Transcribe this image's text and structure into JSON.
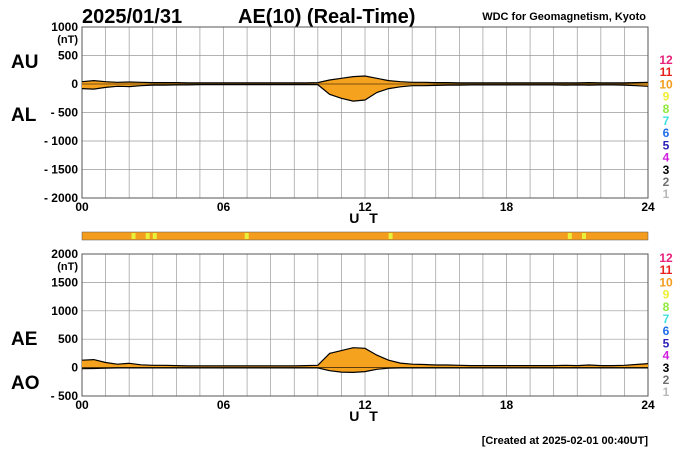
{
  "header": {
    "date": "2025/01/31",
    "title": "AE(10) (Real-Time)",
    "organization": "WDC for Geomagnetism, Kyoto"
  },
  "footer": {
    "created": "[Created at 2025-02-01 00:40UT]"
  },
  "colors": {
    "fill": "#f5a21f",
    "grid": "#9a9a9a",
    "bar": "#f39c1e",
    "bar_mark": "#e8f03a",
    "legend": {
      "12": "#e8207a",
      "11": "#e8201c",
      "10": "#f39c1e",
      "9": "#f0ee32",
      "8": "#8ee83a",
      "7": "#3ee0e0",
      "6": "#1e6ee8",
      "5": "#2a1eb8",
      "4": "#d21ee0",
      "3": "#000000",
      "2": "#707070",
      "1": "#b8b8b8"
    }
  },
  "legend_numbers": [
    "12",
    "11",
    "10",
    "9",
    "8",
    "7",
    "6",
    "5",
    "4",
    "3",
    "2",
    "1"
  ],
  "station_bar": {
    "marks_hours": [
      2.1,
      2.7,
      3.0,
      6.9,
      13.0,
      20.6,
      21.2
    ]
  },
  "chart_data": [
    {
      "type": "area",
      "panel": "AU/AL",
      "labels_left": [
        "AU",
        "AL"
      ],
      "unit": "(nT)",
      "ylim": [
        -2000,
        1000
      ],
      "yticks": [
        1000,
        500,
        0,
        -500,
        -1000,
        -1500,
        -2000
      ],
      "ytick_labels": [
        "1000",
        "500",
        "0",
        "- 500",
        "- 1000",
        "- 1500",
        "- 2000"
      ],
      "xlim": [
        0,
        24
      ],
      "xticks": [
        0,
        6,
        12,
        18,
        24
      ],
      "xtick_labels": [
        "00",
        "06",
        "12",
        "18",
        "24"
      ],
      "xlabel": "U T",
      "grid": true,
      "x": [
        0,
        0.5,
        1,
        1.5,
        2,
        2.5,
        3,
        3.5,
        4,
        4.5,
        5,
        5.5,
        6,
        6.5,
        7,
        7.5,
        8,
        8.5,
        9,
        9.5,
        10,
        10.5,
        11,
        11.5,
        12,
        12.5,
        13,
        13.5,
        14,
        14.5,
        15,
        15.5,
        16,
        16.5,
        17,
        17.5,
        18,
        18.5,
        19,
        19.5,
        20,
        20.5,
        21,
        21.5,
        22,
        22.5,
        23,
        23.5,
        24
      ],
      "series": [
        {
          "name": "AU",
          "values": [
            40,
            60,
            40,
            30,
            35,
            30,
            25,
            25,
            25,
            20,
            20,
            20,
            20,
            20,
            20,
            20,
            20,
            20,
            20,
            20,
            25,
            70,
            100,
            130,
            140,
            100,
            60,
            40,
            30,
            30,
            25,
            25,
            20,
            20,
            20,
            20,
            20,
            20,
            20,
            20,
            20,
            20,
            20,
            25,
            20,
            20,
            20,
            25,
            30
          ]
        },
        {
          "name": "AL",
          "values": [
            -80,
            -90,
            -60,
            -40,
            -45,
            -30,
            -20,
            -20,
            -15,
            -15,
            -10,
            -10,
            -10,
            -10,
            -10,
            -10,
            -10,
            -10,
            -10,
            -10,
            -10,
            -180,
            -250,
            -300,
            -280,
            -150,
            -80,
            -50,
            -30,
            -30,
            -25,
            -20,
            -20,
            -15,
            -15,
            -15,
            -15,
            -15,
            -15,
            -15,
            -15,
            -20,
            -15,
            -20,
            -15,
            -15,
            -20,
            -30,
            -40
          ]
        }
      ]
    },
    {
      "type": "area",
      "panel": "AE/AO",
      "labels_left": [
        "AE",
        "AO"
      ],
      "unit": "(nT)",
      "ylim": [
        -500,
        2000
      ],
      "yticks": [
        2000,
        1500,
        1000,
        500,
        0,
        -500
      ],
      "ytick_labels": [
        "2000",
        "1500",
        "1000",
        "500",
        "0",
        "- 500"
      ],
      "xlim": [
        0,
        24
      ],
      "xticks": [
        0,
        6,
        12,
        18,
        24
      ],
      "xtick_labels": [
        "00",
        "06",
        "12",
        "18",
        "24"
      ],
      "xlabel": "U T",
      "grid": true,
      "x": [
        0,
        0.5,
        1,
        1.5,
        2,
        2.5,
        3,
        3.5,
        4,
        4.5,
        5,
        5.5,
        6,
        6.5,
        7,
        7.5,
        8,
        8.5,
        9,
        9.5,
        10,
        10.5,
        11,
        11.5,
        12,
        12.5,
        13,
        13.5,
        14,
        14.5,
        15,
        15.5,
        16,
        16.5,
        17,
        17.5,
        18,
        18.5,
        19,
        19.5,
        20,
        20.5,
        21,
        21.5,
        22,
        22.5,
        23,
        23.5,
        24
      ],
      "series": [
        {
          "name": "AE",
          "values": [
            130,
            140,
            90,
            60,
            75,
            50,
            40,
            40,
            35,
            30,
            30,
            30,
            30,
            30,
            30,
            30,
            30,
            30,
            30,
            35,
            40,
            250,
            300,
            350,
            340,
            220,
            130,
            80,
            60,
            55,
            45,
            45,
            40,
            35,
            35,
            35,
            35,
            35,
            35,
            35,
            35,
            40,
            35,
            45,
            35,
            35,
            40,
            55,
            70
          ]
        },
        {
          "name": "AO",
          "values": [
            -20,
            -15,
            -10,
            -5,
            -5,
            -5,
            -5,
            -5,
            -5,
            -5,
            -5,
            -5,
            -5,
            -5,
            -5,
            -5,
            -5,
            -5,
            -5,
            -5,
            -5,
            -55,
            -80,
            -85,
            -70,
            -30,
            -10,
            -5,
            -5,
            -5,
            -5,
            -5,
            -5,
            -5,
            -5,
            -5,
            -5,
            -5,
            -5,
            -5,
            -5,
            -5,
            -5,
            -5,
            -5,
            -5,
            -5,
            -5,
            -5
          ]
        }
      ]
    }
  ]
}
